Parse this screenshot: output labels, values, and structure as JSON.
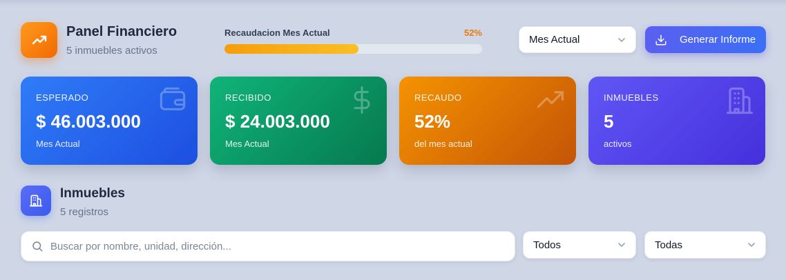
{
  "header": {
    "title": "Panel Financiero",
    "subtitle": "5 inmuebles activos",
    "icon": "trending-up-icon",
    "accent": "#f26a00"
  },
  "progress": {
    "label": "Recaudacion Mes Actual",
    "percent_text": "52%",
    "value": 0.52
  },
  "period_select": {
    "selected": "Mes Actual"
  },
  "generate_button": {
    "label": "Generar Informe",
    "icon": "download-icon"
  },
  "cards": [
    {
      "label": "ESPERADO",
      "value": "$ 46.003.000",
      "sub": "Mes Actual",
      "icon": "wallet-icon",
      "color": "#2563eb"
    },
    {
      "label": "RECIBIDO",
      "value": "$ 24.003.000",
      "sub": "Mes Actual",
      "icon": "dollar-icon",
      "color": "#059669"
    },
    {
      "label": "RECAUDO",
      "value": "52%",
      "sub": "del mes actual",
      "icon": "trending-up-icon",
      "color": "#ea580c"
    },
    {
      "label": "INMUEBLES",
      "value": "5",
      "sub": "activos",
      "icon": "building-icon",
      "color": "#4f46e5"
    }
  ],
  "section": {
    "title": "Inmuebles",
    "subtitle": "5 registros",
    "icon": "building-icon"
  },
  "search": {
    "placeholder": "Buscar por nombre, unidad, dirección...",
    "value": ""
  },
  "filters": [
    {
      "selected": "Todos"
    },
    {
      "selected": "Todas"
    }
  ]
}
